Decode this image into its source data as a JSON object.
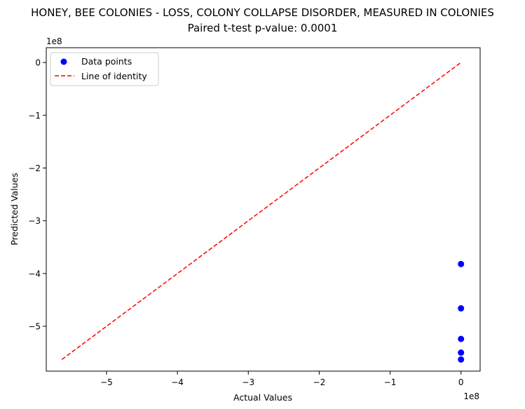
{
  "chart_data": {
    "type": "scatter",
    "title": "HONEY, BEE COLONIES - LOSS, COLONY COLLAPSE DISORDER, MEASURED IN COLONIES",
    "subtitle": "Paired t-test p-value: 0.0001",
    "xlabel": "Actual Values",
    "ylabel": "Predicted Values",
    "x_offset_label": "1e8",
    "y_offset_label": "1e8",
    "xlim": [
      -5.85,
      0.27
    ],
    "ylim": [
      -5.85,
      0.28
    ],
    "x_ticks": [
      -5,
      -4,
      -3,
      -2,
      -1,
      0
    ],
    "y_ticks": [
      0,
      -1,
      -2,
      -3,
      -4,
      -5
    ],
    "x_tick_labels": [
      "−5",
      "−4",
      "−3",
      "−2",
      "−1",
      "0"
    ],
    "y_tick_labels": [
      "0",
      "−1",
      "−2",
      "−3",
      "−4",
      "−5"
    ],
    "grid": false,
    "legend_position": "upper-left",
    "series": [
      {
        "name": "Data points",
        "kind": "scatter",
        "color": "#0000ff",
        "points": [
          {
            "x": 0.0,
            "y": -3.82
          },
          {
            "x": 0.0,
            "y": -4.66
          },
          {
            "x": 0.0,
            "y": -5.24
          },
          {
            "x": 0.0,
            "y": -5.5
          },
          {
            "x": 0.0,
            "y": -5.63
          }
        ]
      },
      {
        "name": "Line of identity",
        "kind": "line",
        "style": "dashed",
        "color": "#ff0000",
        "points": [
          {
            "x": -5.63,
            "y": -5.63
          },
          {
            "x": 0.0,
            "y": 0.0
          }
        ]
      }
    ]
  }
}
